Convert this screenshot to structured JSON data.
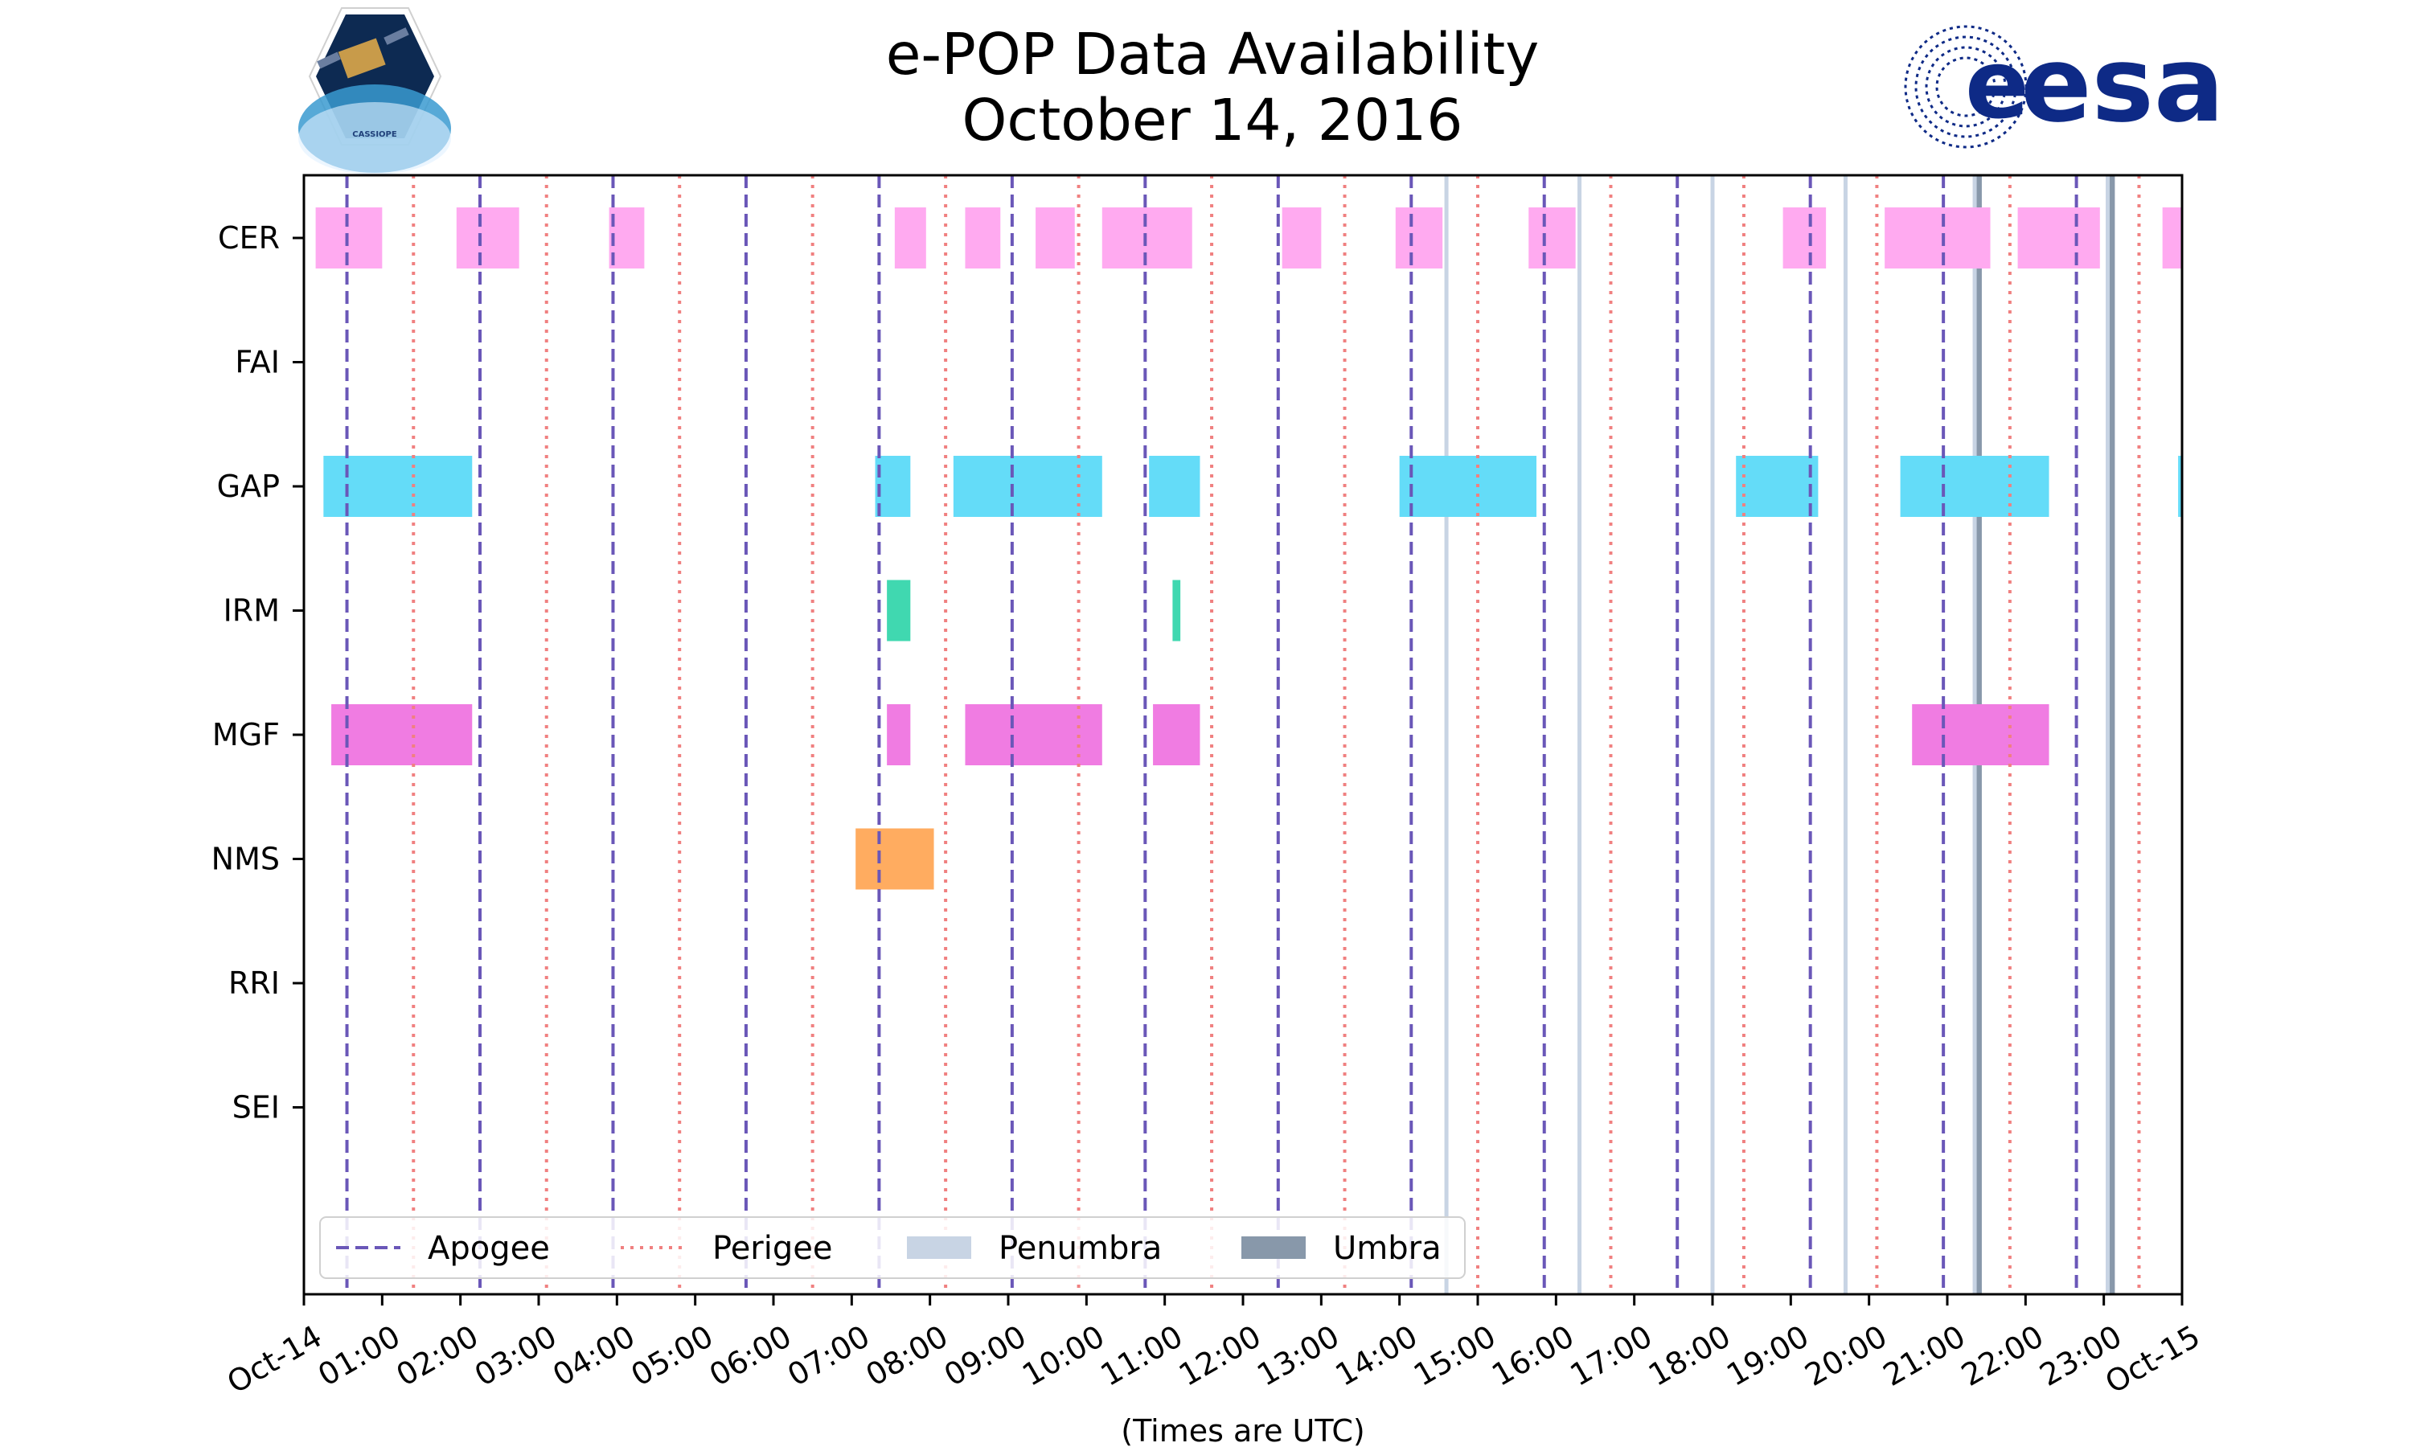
{
  "chart_data": {
    "type": "timeline",
    "title": [
      "e-POP Data Availability",
      "October 14, 2016"
    ],
    "xlabel": "(Times are UTC)",
    "x_range_hours": [
      0,
      24
    ],
    "x_tick_labels": [
      "Oct-14",
      "01:00",
      "02:00",
      "03:00",
      "04:00",
      "05:00",
      "06:00",
      "07:00",
      "08:00",
      "09:00",
      "10:00",
      "11:00",
      "12:00",
      "13:00",
      "14:00",
      "15:00",
      "16:00",
      "17:00",
      "18:00",
      "19:00",
      "20:00",
      "21:00",
      "22:00",
      "23:00",
      "Oct-15"
    ],
    "instruments": [
      "CER",
      "FAI",
      "GAP",
      "IRM",
      "MGF",
      "NMS",
      "RRI",
      "SEI"
    ],
    "series": [
      {
        "name": "CER",
        "color": "#ffaaf0",
        "intervals": [
          [
            0.15,
            1.0
          ],
          [
            1.95,
            2.75
          ],
          [
            3.9,
            4.35
          ],
          [
            7.55,
            7.95
          ],
          [
            8.45,
            8.9
          ],
          [
            9.35,
            9.85
          ],
          [
            10.2,
            11.35
          ],
          [
            12.5,
            13.0
          ],
          [
            13.95,
            14.55
          ],
          [
            15.65,
            16.25
          ],
          [
            18.9,
            19.45
          ],
          [
            20.2,
            21.55
          ],
          [
            21.9,
            22.95
          ],
          [
            23.75,
            24.0
          ]
        ]
      },
      {
        "name": "FAI",
        "color": "#a0d2ff",
        "intervals": []
      },
      {
        "name": "GAP",
        "color": "#64dcf8",
        "intervals": [
          [
            0.25,
            2.15
          ],
          [
            7.3,
            7.75
          ],
          [
            8.3,
            10.2
          ],
          [
            10.8,
            11.45
          ],
          [
            14.0,
            15.75
          ],
          [
            18.3,
            19.35
          ],
          [
            20.4,
            22.3
          ],
          [
            23.95,
            24.0
          ]
        ]
      },
      {
        "name": "IRM",
        "color": "#40d8b0",
        "intervals": [
          [
            7.45,
            7.75
          ],
          [
            11.1,
            11.2
          ]
        ]
      },
      {
        "name": "MGF",
        "color": "#f07ce2",
        "intervals": [
          [
            0.35,
            2.15
          ],
          [
            7.45,
            7.75
          ],
          [
            8.45,
            10.2
          ],
          [
            10.85,
            11.45
          ],
          [
            20.55,
            22.3
          ]
        ]
      },
      {
        "name": "NMS",
        "color": "#ffac60",
        "intervals": [
          [
            7.05,
            8.05
          ]
        ]
      },
      {
        "name": "RRI",
        "color": "#c8a0ff",
        "intervals": []
      },
      {
        "name": "SEI",
        "color": "#ffe060",
        "intervals": []
      }
    ],
    "apogee_hours": [
      0.55,
      2.25,
      3.95,
      5.65,
      7.35,
      9.05,
      10.75,
      12.45,
      14.15,
      15.85,
      17.55,
      19.25,
      20.95,
      22.65
    ],
    "perigee_hours": [
      1.4,
      3.1,
      4.8,
      6.5,
      8.2,
      9.9,
      11.6,
      13.3,
      15.0,
      16.7,
      18.4,
      20.1,
      21.8,
      23.45
    ],
    "penumbra_hours": [
      14.6,
      16.3,
      18.0,
      19.7,
      21.35,
      23.05
    ],
    "umbra_hours": [
      21.4,
      23.1
    ],
    "legend": {
      "placement": "bottom-left",
      "entries": [
        {
          "label": "Apogee",
          "style": "dashed",
          "color": "#6a57b8"
        },
        {
          "label": "Perigee",
          "style": "dotted",
          "color": "#f08080"
        },
        {
          "label": "Penumbra",
          "style": "patch",
          "color": "#c8d4e4"
        },
        {
          "label": "Umbra",
          "style": "patch",
          "color": "#8898aa"
        }
      ]
    }
  },
  "logos": {
    "left": {
      "text": "CASSIOPE"
    },
    "right": {
      "text": "esa"
    }
  }
}
